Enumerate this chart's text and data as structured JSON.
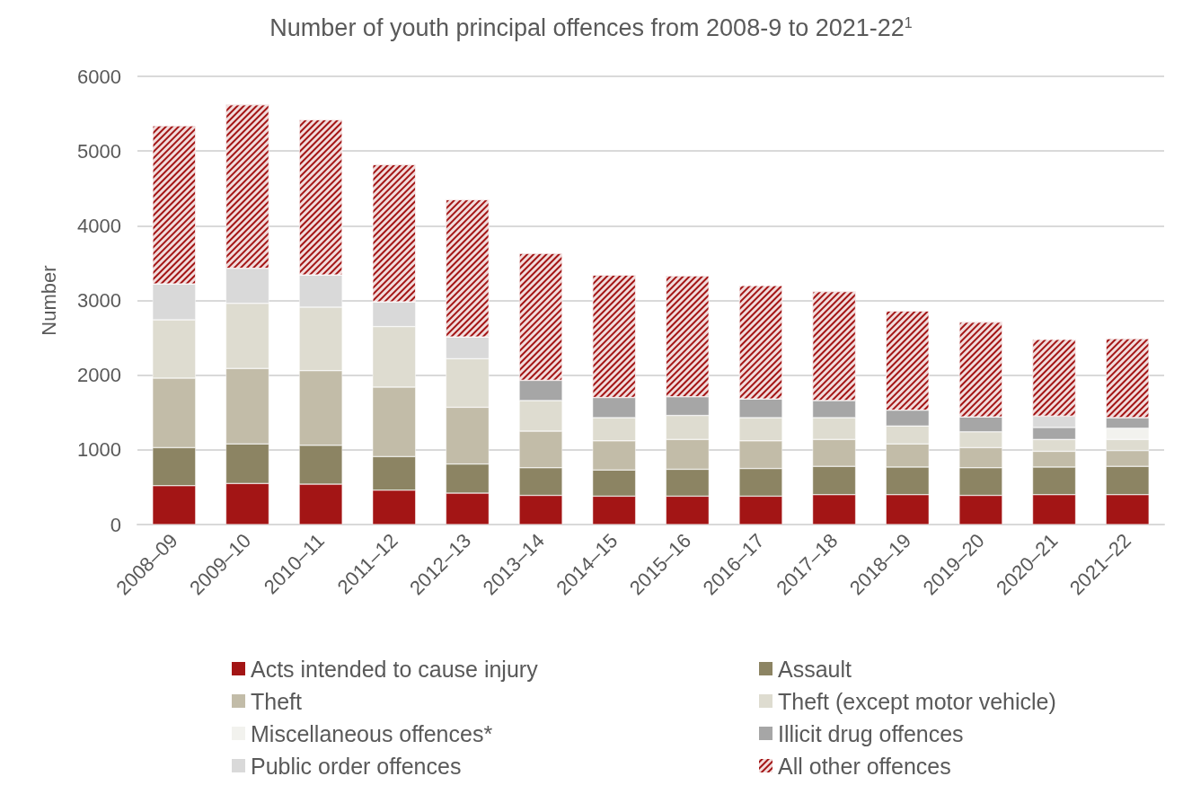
{
  "chart_data": {
    "type": "bar",
    "stacked": true,
    "title": "Number of youth principal offences from 2008-9 to 2021-22$^{1}$",
    "ylabel": "Number",
    "categories": [
      "2008–09",
      "2009–10",
      "2010–11",
      "2011–12",
      "2012–13",
      "2013–14",
      "2014–15",
      "2015–16",
      "2016–17",
      "2017–18",
      "2018–19",
      "2019–20",
      "2020–21",
      "2021–22"
    ],
    "series": [
      {
        "name": "Acts intended to cause injury",
        "color": "#a31515",
        "values": [
          520,
          550,
          540,
          460,
          420,
          390,
          380,
          380,
          380,
          400,
          400,
          390,
          400,
          400
        ]
      },
      {
        "name": "Assault",
        "color": "#8c8463",
        "values": [
          510,
          530,
          520,
          450,
          390,
          370,
          350,
          360,
          370,
          380,
          370,
          370,
          370,
          380
        ]
      },
      {
        "name": "Theft",
        "color": "#c2bca8",
        "values": [
          930,
          1010,
          1000,
          930,
          760,
          490,
          390,
          400,
          370,
          360,
          310,
          270,
          210,
          210
        ]
      },
      {
        "name": "Theft (except motor vehicle)",
        "color": "#dedcd0",
        "values": [
          780,
          870,
          850,
          810,
          650,
          410,
          310,
          320,
          310,
          290,
          240,
          210,
          160,
          150
        ]
      },
      {
        "name": "Miscellaneous offences*",
        "color": "#f2f2ee",
        "values": [
          null,
          null,
          null,
          null,
          null,
          null,
          null,
          null,
          null,
          null,
          null,
          null,
          null,
          150
        ]
      },
      {
        "name": "Illicit drug offences",
        "color": "#a6a6a6",
        "values": [
          null,
          null,
          null,
          null,
          null,
          270,
          270,
          250,
          250,
          230,
          210,
          200,
          160,
          140
        ]
      },
      {
        "name": "Public order offences",
        "color": "#d9d9d9",
        "values": [
          480,
          470,
          430,
          330,
          290,
          null,
          null,
          null,
          null,
          null,
          null,
          null,
          150,
          null
        ]
      },
      {
        "name": "All other offences",
        "color": "#a31515",
        "values": [
          2120,
          2190,
          2080,
          1840,
          1840,
          1700,
          1640,
          1620,
          1520,
          1460,
          1330,
          1270,
          1030,
          1060
        ]
      }
    ],
    "ylim": [
      0,
      6000
    ],
    "yticks": [
      0,
      1000,
      2000,
      3000,
      4000,
      5000,
      6000
    ],
    "grid": "y",
    "legend": "bottom"
  }
}
